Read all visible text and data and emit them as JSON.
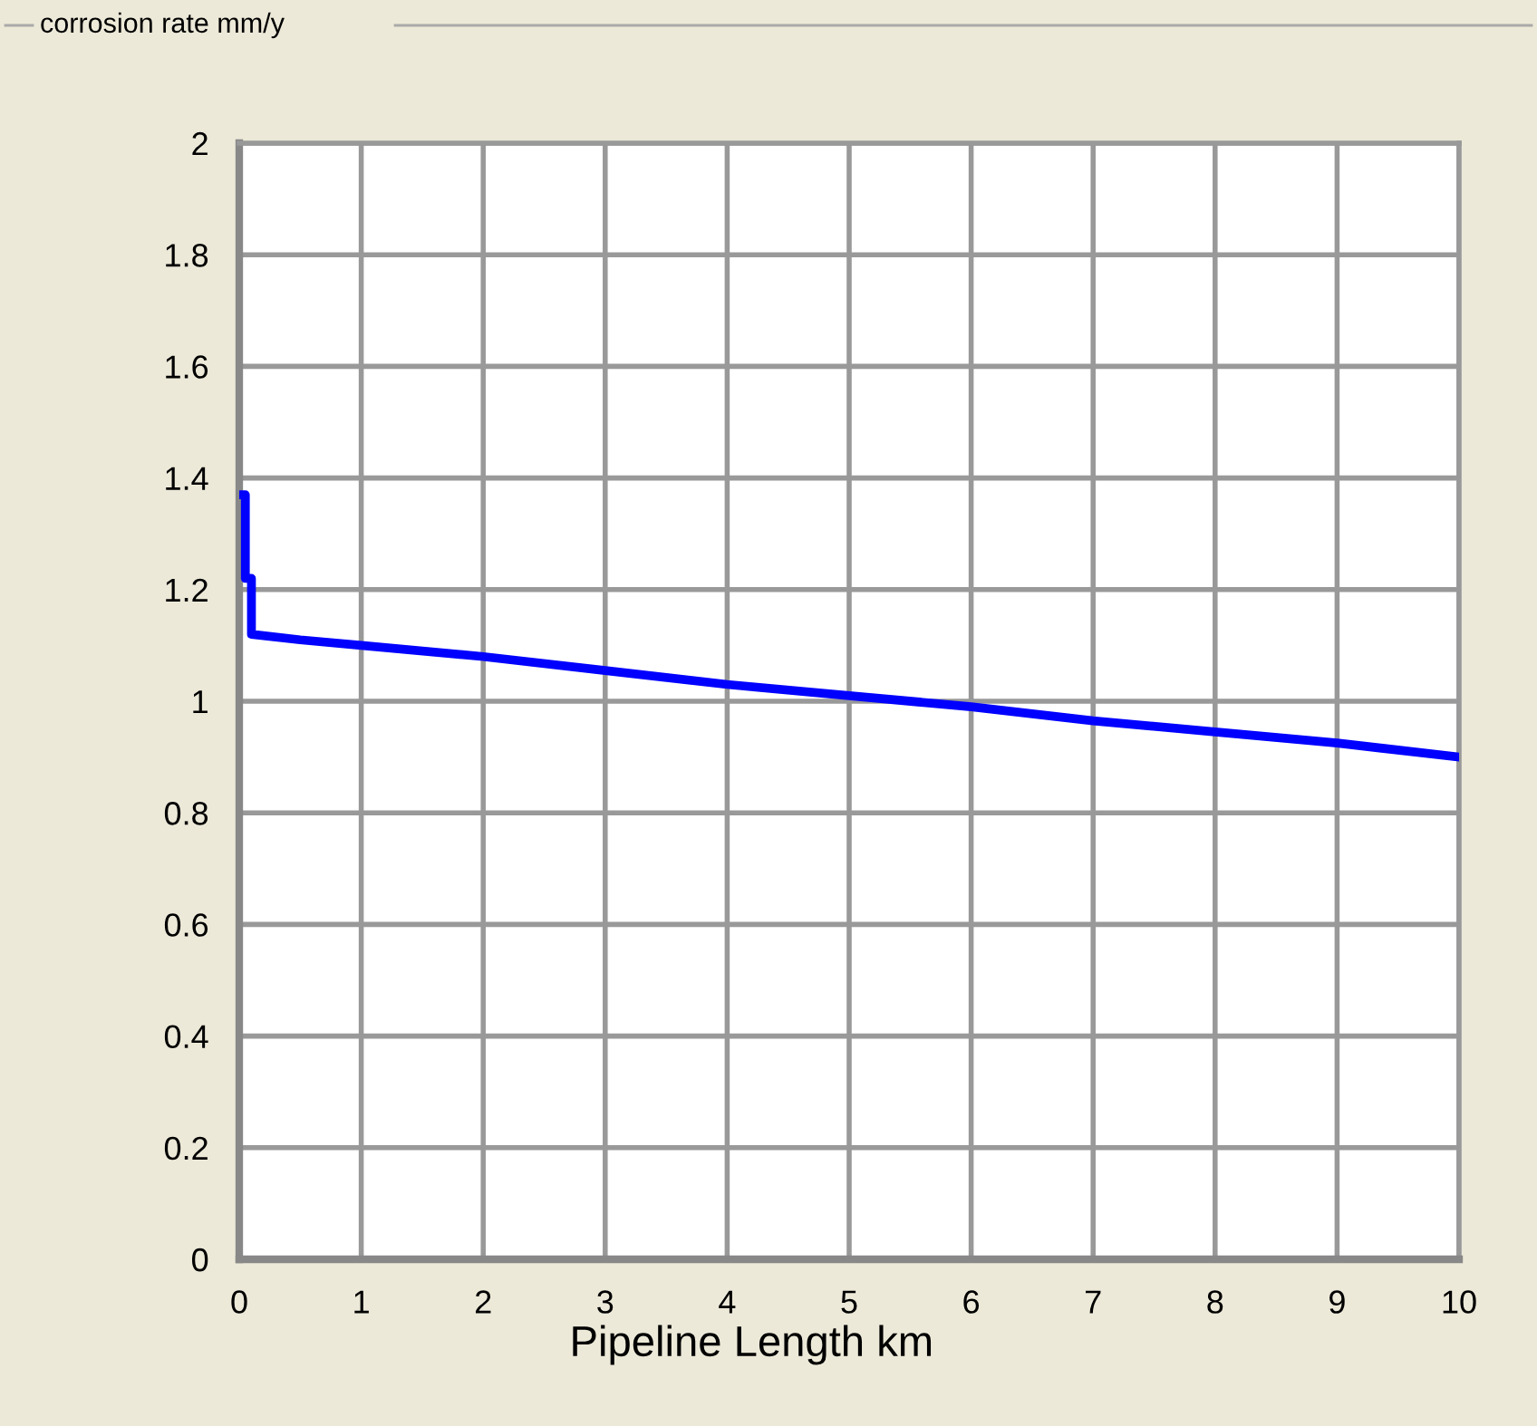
{
  "chart_data": {
    "type": "line",
    "ylabel": "corrosion rate mm/y",
    "xlabel": "Pipeline Length km",
    "x": [
      0.03,
      0.05,
      0.05,
      0.1,
      0.1,
      0.5,
      1,
      2,
      3,
      4,
      5,
      6,
      7,
      8,
      9,
      10
    ],
    "series": [
      {
        "color": "#0000ff",
        "values": [
          1.37,
          1.37,
          1.22,
          1.22,
          1.12,
          1.11,
          1.1,
          1.08,
          1.055,
          1.03,
          1.01,
          0.99,
          0.965,
          0.945,
          0.925,
          0.9
        ]
      }
    ],
    "xlim": [
      0,
      10
    ],
    "xticks": [
      0,
      1,
      2,
      3,
      4,
      5,
      6,
      7,
      8,
      9,
      10
    ],
    "ylim": [
      0,
      2
    ],
    "yticks": [
      0,
      0.2,
      0.4,
      0.6,
      0.8,
      1,
      1.2,
      1.4,
      1.6,
      1.8,
      2
    ],
    "grid": true,
    "legend": false,
    "marker": "none",
    "line_style": "solid"
  }
}
